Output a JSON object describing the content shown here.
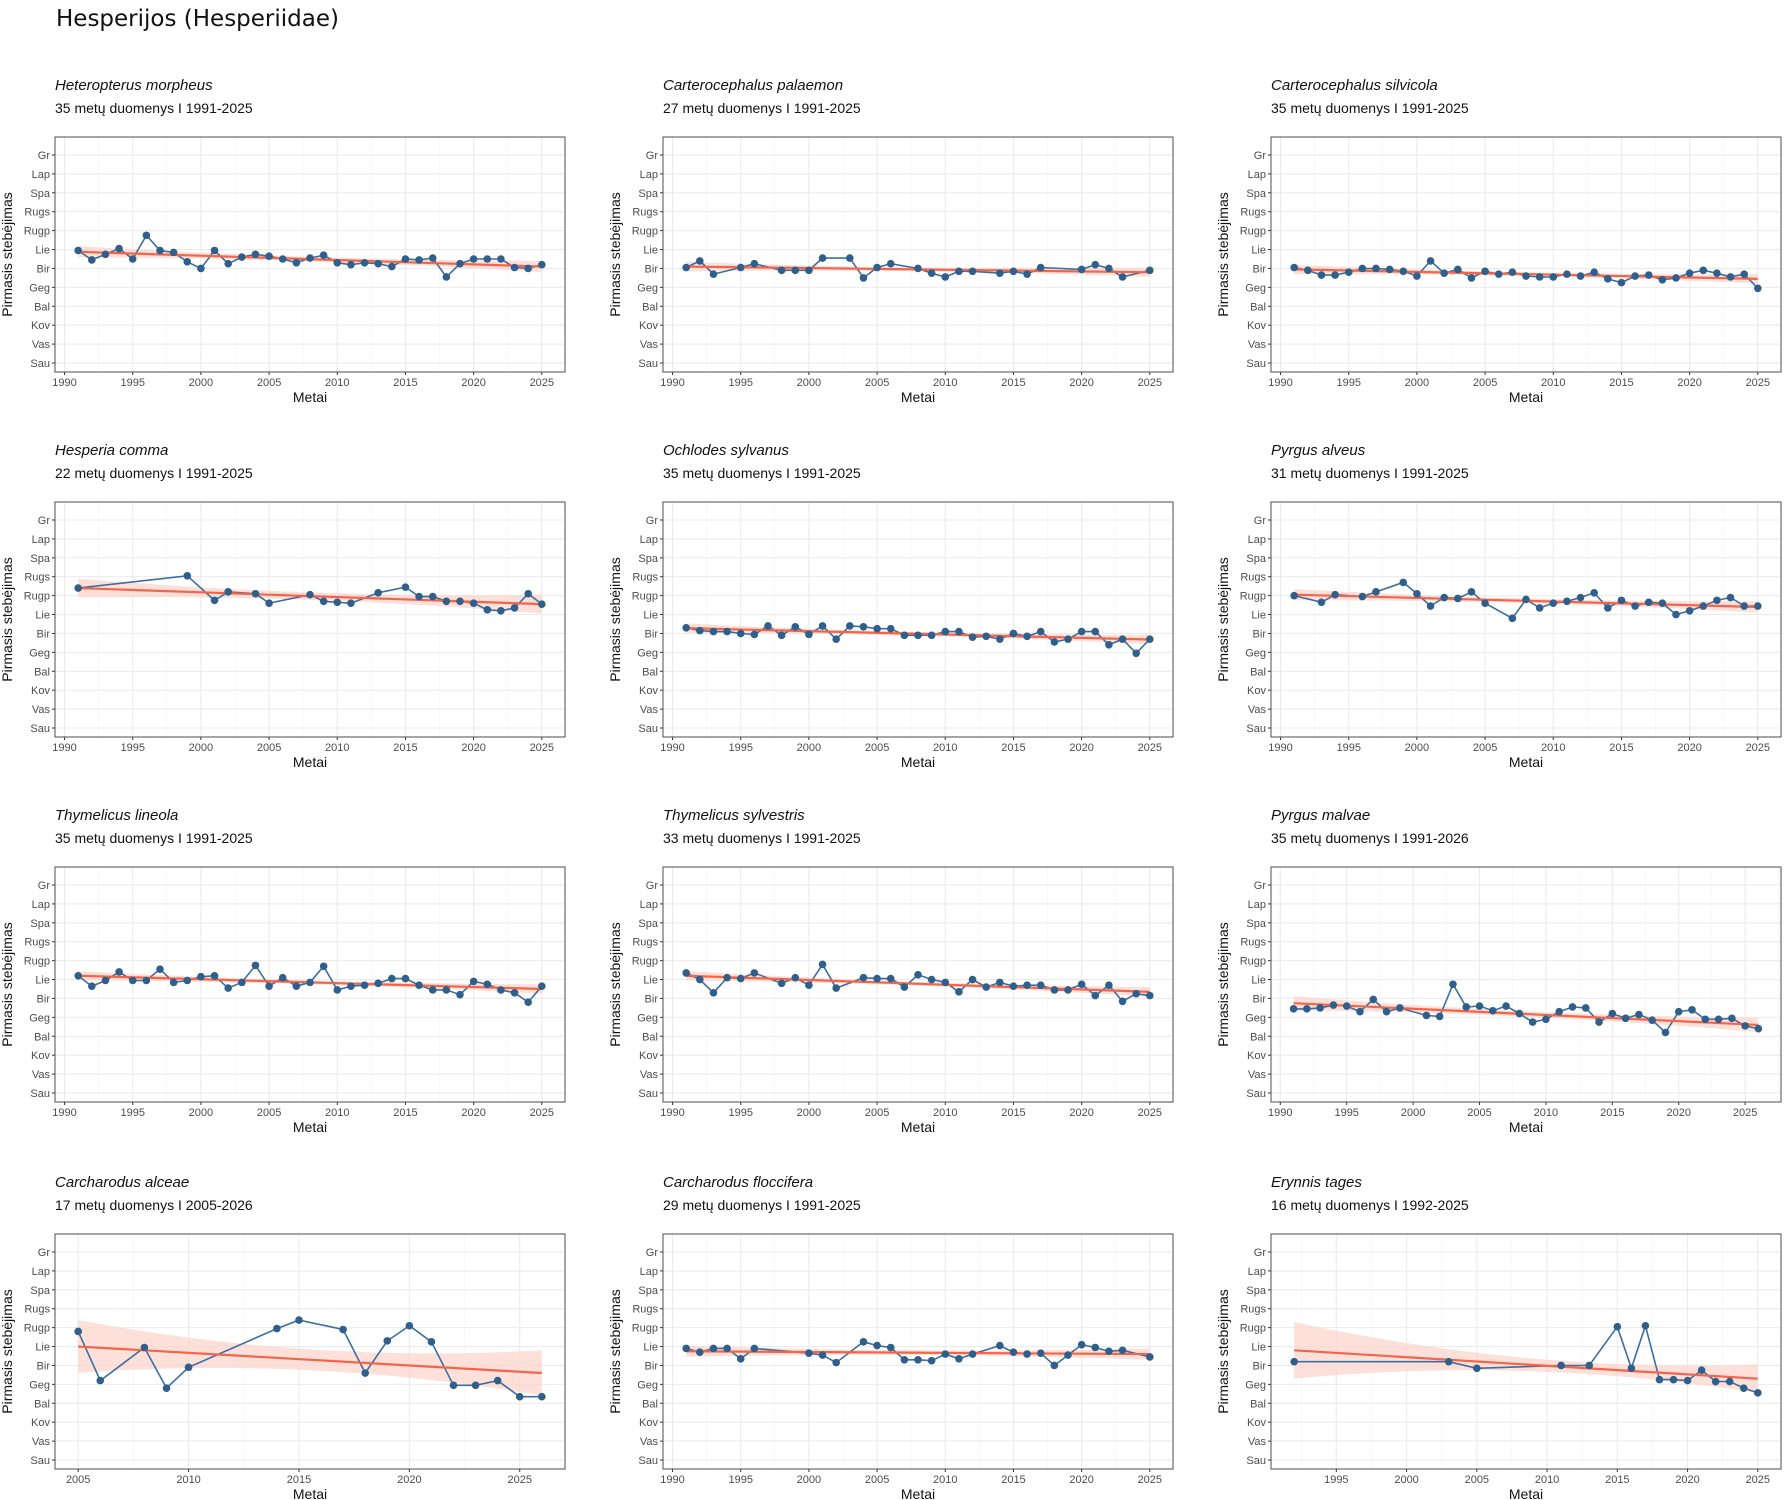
{
  "page": {
    "title": "Hesperijos (Hesperiidae)"
  },
  "colors": {
    "points": "#2f5f8a",
    "line": "#3b6fa0",
    "trend": "#f2654a",
    "ribbon": "#fbd5cc",
    "grid": "#ebebeb",
    "frame": "#4d4d4d"
  },
  "axis": {
    "xlabel": "Metai",
    "ylabel": "Pirmasis stebėjimas",
    "month_labels": [
      "Sau",
      "Vas",
      "Kov",
      "Bal",
      "Geg",
      "Bir",
      "Lie",
      "Rugp",
      "Rugs",
      "Spa",
      "Lap",
      "Gr"
    ]
  },
  "chart_data": [
    {
      "type": "line",
      "title": "Heteropterus morpheus",
      "subtitle": {
        "years_label": "35 metų duomenys",
        "sep": "I",
        "range": "1991-2025"
      },
      "xlabel": "Metai",
      "ylabel": "Pirmasis stebėjimas",
      "xlim": [
        1989.3,
        2026.7
      ],
      "xticks": [
        1990,
        1995,
        2000,
        2005,
        2010,
        2015,
        2020,
        2025
      ],
      "ylim": [
        0.3,
        12.7
      ],
      "x": [
        1991,
        1992,
        1993,
        1994,
        1995,
        1996,
        1997,
        1998,
        1999,
        2000,
        2001,
        2002,
        2003,
        2004,
        2005,
        2006,
        2007,
        2008,
        2009,
        2010,
        2011,
        2012,
        2013,
        2014,
        2015,
        2016,
        2017,
        2018,
        2019,
        2020,
        2021,
        2022,
        2023,
        2024,
        2025
      ],
      "y": [
        6.95,
        6.45,
        6.75,
        7.05,
        6.5,
        7.75,
        6.95,
        6.85,
        6.35,
        6.0,
        6.95,
        6.25,
        6.6,
        6.75,
        6.65,
        6.5,
        6.3,
        6.55,
        6.7,
        6.3,
        6.2,
        6.3,
        6.25,
        6.1,
        6.5,
        6.45,
        6.55,
        5.55,
        6.25,
        6.5,
        6.5,
        6.5,
        6.05,
        6.0,
        6.2
      ],
      "trend": {
        "start": 6.88,
        "end": 6.1,
        "ci": 0.12
      }
    },
    {
      "type": "line",
      "title": "Carterocephalus palaemon",
      "subtitle": {
        "years_label": "27 metų duomenys",
        "sep": "I",
        "range": "1991-2025"
      },
      "xlabel": "Metai",
      "ylabel": "Pirmasis stebėjimas",
      "xlim": [
        1989.3,
        2026.7
      ],
      "xticks": [
        1990,
        1995,
        2000,
        2005,
        2010,
        2015,
        2020,
        2025
      ],
      "ylim": [
        0.3,
        12.7
      ],
      "x": [
        1991,
        1992,
        1993,
        1995,
        1996,
        1998,
        1999,
        2000,
        2001,
        2003,
        2004,
        2005,
        2006,
        2008,
        2009,
        2010,
        2011,
        2012,
        2014,
        2015,
        2016,
        2017,
        2020,
        2021,
        2022,
        2023,
        2025
      ],
      "y": [
        6.05,
        6.4,
        5.7,
        6.05,
        6.25,
        5.9,
        5.9,
        5.9,
        6.55,
        6.55,
        5.5,
        6.05,
        6.25,
        6.0,
        5.75,
        5.55,
        5.85,
        5.85,
        5.75,
        5.85,
        5.7,
        6.05,
        5.95,
        6.2,
        6.0,
        5.55,
        5.9
      ],
      "trend": {
        "start": 6.1,
        "end": 5.8,
        "ci": 0.1
      }
    },
    {
      "type": "line",
      "title": "Carterocephalus silvicola",
      "subtitle": {
        "years_label": "35 metų duomenys",
        "sep": "I",
        "range": "1991-2025"
      },
      "xlabel": "Metai",
      "ylabel": "Pirmasis stebėjimas",
      "xlim": [
        1989.3,
        2026.7
      ],
      "xticks": [
        1990,
        1995,
        2000,
        2005,
        2010,
        2015,
        2020,
        2025
      ],
      "ylim": [
        0.3,
        12.7
      ],
      "x": [
        1991,
        1992,
        1993,
        1994,
        1995,
        1996,
        1997,
        1998,
        1999,
        2000,
        2001,
        2002,
        2003,
        2004,
        2005,
        2006,
        2007,
        2008,
        2009,
        2010,
        2011,
        2012,
        2013,
        2014,
        2015,
        2016,
        2017,
        2018,
        2019,
        2020,
        2021,
        2022,
        2023,
        2024,
        2025
      ],
      "y": [
        6.05,
        5.9,
        5.65,
        5.65,
        5.8,
        6.0,
        6.0,
        5.95,
        5.85,
        5.6,
        6.4,
        5.75,
        5.95,
        5.5,
        5.85,
        5.7,
        5.8,
        5.6,
        5.55,
        5.55,
        5.7,
        5.6,
        5.8,
        5.45,
        5.25,
        5.6,
        5.65,
        5.4,
        5.5,
        5.75,
        5.9,
        5.75,
        5.55,
        5.7,
        4.95
      ],
      "trend": {
        "start": 5.95,
        "end": 5.45,
        "ci": 0.1
      }
    },
    {
      "type": "line",
      "title": "Hesperia comma",
      "subtitle": {
        "years_label": "22 metų duomenys",
        "sep": "I",
        "range": "1991-2025"
      },
      "xlabel": "Metai",
      "ylabel": "Pirmasis stebėjimas",
      "xlim": [
        1989.3,
        2026.7
      ],
      "xticks": [
        1990,
        1995,
        2000,
        2005,
        2010,
        2015,
        2020,
        2025
      ],
      "ylim": [
        0.3,
        12.7
      ],
      "x": [
        1991,
        1999,
        2001,
        2002,
        2004,
        2005,
        2008,
        2009,
        2010,
        2011,
        2013,
        2015,
        2016,
        2017,
        2018,
        2019,
        2020,
        2021,
        2022,
        2023,
        2024,
        2025
      ],
      "y": [
        8.4,
        9.05,
        7.75,
        8.2,
        8.1,
        7.6,
        8.05,
        7.7,
        7.65,
        7.6,
        8.15,
        8.45,
        7.95,
        7.95,
        7.7,
        7.7,
        7.6,
        7.25,
        7.2,
        7.35,
        8.1,
        7.55
      ],
      "trend": {
        "start": 8.4,
        "end": 7.55,
        "ci": 0.2
      }
    },
    {
      "type": "line",
      "title": "Ochlodes sylvanus",
      "subtitle": {
        "years_label": "35 metų duomenys",
        "sep": "I",
        "range": "1991-2025"
      },
      "xlabel": "Metai",
      "ylabel": "Pirmasis stebėjimas",
      "xlim": [
        1989.3,
        2026.7
      ],
      "xticks": [
        1990,
        1995,
        2000,
        2005,
        2010,
        2015,
        2020,
        2025
      ],
      "ylim": [
        0.3,
        12.7
      ],
      "x": [
        1991,
        1992,
        1993,
        1994,
        1995,
        1996,
        1997,
        1998,
        1999,
        2000,
        2001,
        2002,
        2003,
        2004,
        2005,
        2006,
        2007,
        2008,
        2009,
        2010,
        2011,
        2012,
        2013,
        2014,
        2015,
        2016,
        2017,
        2018,
        2019,
        2020,
        2021,
        2022,
        2023,
        2024,
        2025
      ],
      "y": [
        6.3,
        6.15,
        6.1,
        6.1,
        6.0,
        5.95,
        6.4,
        5.9,
        6.35,
        5.95,
        6.4,
        5.7,
        6.4,
        6.35,
        6.25,
        6.25,
        5.9,
        5.9,
        5.9,
        6.1,
        6.1,
        5.8,
        5.85,
        5.7,
        6.0,
        5.85,
        6.1,
        5.55,
        5.7,
        6.1,
        6.1,
        5.4,
        5.7,
        4.95,
        5.7
      ],
      "trend": {
        "start": 6.28,
        "end": 5.68,
        "ci": 0.1
      }
    },
    {
      "type": "line",
      "title": "Pyrgus alveus",
      "subtitle": {
        "years_label": "31 metų duomenys",
        "sep": "I",
        "range": "1991-2025"
      },
      "xlabel": "Metai",
      "ylabel": "Pirmasis stebėjimas",
      "xlim": [
        1989.3,
        2026.7
      ],
      "xticks": [
        1990,
        1995,
        2000,
        2005,
        2010,
        2015,
        2020,
        2025
      ],
      "ylim": [
        0.3,
        12.7
      ],
      "x": [
        1991,
        1993,
        1994,
        1996,
        1997,
        1999,
        2000,
        2001,
        2002,
        2003,
        2004,
        2005,
        2007,
        2008,
        2009,
        2010,
        2011,
        2012,
        2013,
        2014,
        2015,
        2016,
        2017,
        2018,
        2019,
        2020,
        2021,
        2022,
        2023,
        2024,
        2025
      ],
      "y": [
        8.0,
        7.65,
        8.05,
        7.95,
        8.2,
        8.7,
        8.1,
        7.45,
        7.9,
        7.85,
        8.2,
        7.6,
        6.8,
        7.8,
        7.35,
        7.6,
        7.7,
        7.9,
        8.15,
        7.35,
        7.75,
        7.45,
        7.65,
        7.6,
        7.0,
        7.2,
        7.45,
        7.75,
        7.9,
        7.45,
        7.45
      ],
      "trend": {
        "start": 8.05,
        "end": 7.4,
        "ci": 0.12
      }
    },
    {
      "type": "line",
      "title": "Thymelicus lineola",
      "subtitle": {
        "years_label": "35 metų duomenys",
        "sep": "I",
        "range": "1991-2025"
      },
      "xlabel": "Metai",
      "ylabel": "Pirmasis stebėjimas",
      "xlim": [
        1989.3,
        2026.7
      ],
      "xticks": [
        1990,
        1995,
        2000,
        2005,
        2010,
        2015,
        2020,
        2025
      ],
      "ylim": [
        0.3,
        12.7
      ],
      "x": [
        1991,
        1992,
        1993,
        1994,
        1995,
        1996,
        1997,
        1998,
        1999,
        2000,
        2001,
        2002,
        2003,
        2004,
        2005,
        2006,
        2007,
        2008,
        2009,
        2010,
        2011,
        2012,
        2013,
        2014,
        2015,
        2016,
        2017,
        2018,
        2019,
        2020,
        2021,
        2022,
        2023,
        2024,
        2025
      ],
      "y": [
        7.2,
        6.65,
        6.95,
        7.4,
        6.95,
        6.95,
        7.55,
        6.85,
        6.95,
        7.15,
        7.2,
        6.55,
        6.85,
        7.75,
        6.65,
        7.1,
        6.65,
        6.85,
        7.7,
        6.45,
        6.65,
        6.7,
        6.8,
        7.05,
        7.05,
        6.7,
        6.45,
        6.45,
        6.2,
        6.9,
        6.75,
        6.45,
        6.3,
        5.8,
        6.65
      ],
      "trend": {
        "start": 7.2,
        "end": 6.5,
        "ci": 0.1
      }
    },
    {
      "type": "line",
      "title": "Thymelicus sylvestris",
      "subtitle": {
        "years_label": "33 metų duomenys",
        "sep": "I",
        "range": "1991-2025"
      },
      "xlabel": "Metai",
      "ylabel": "Pirmasis stebėjimas",
      "xlim": [
        1989.3,
        2026.7
      ],
      "xticks": [
        1990,
        1995,
        2000,
        2005,
        2010,
        2015,
        2020,
        2025
      ],
      "ylim": [
        0.3,
        12.7
      ],
      "x": [
        1991,
        1992,
        1993,
        1994,
        1995,
        1996,
        1998,
        1999,
        2000,
        2001,
        2002,
        2004,
        2005,
        2006,
        2007,
        2008,
        2009,
        2010,
        2011,
        2012,
        2013,
        2014,
        2015,
        2016,
        2017,
        2018,
        2019,
        2020,
        2021,
        2022,
        2023,
        2024,
        2025
      ],
      "y": [
        7.35,
        7.0,
        6.3,
        7.1,
        7.05,
        7.35,
        6.8,
        7.1,
        6.7,
        7.8,
        6.55,
        7.1,
        7.05,
        7.05,
        6.6,
        7.25,
        7.0,
        6.85,
        6.35,
        7.0,
        6.6,
        6.85,
        6.65,
        6.7,
        6.7,
        6.45,
        6.45,
        6.75,
        6.15,
        6.7,
        5.85,
        6.25,
        6.15
      ],
      "trend": {
        "start": 7.2,
        "end": 6.35,
        "ci": 0.1
      }
    },
    {
      "type": "line",
      "title": "Pyrgus malvae",
      "subtitle": {
        "years_label": "35 metų duomenys",
        "sep": "I",
        "range": "1991-2026"
      },
      "xlabel": "Metai",
      "ylabel": "Pirmasis stebėjimas",
      "xlim": [
        1989.3,
        2027.7
      ],
      "xticks": [
        1990,
        1995,
        2000,
        2005,
        2010,
        2015,
        2020,
        2025
      ],
      "ylim": [
        0.3,
        12.7
      ],
      "x": [
        1991,
        1992,
        1993,
        1994,
        1995,
        1996,
        1997,
        1998,
        1999,
        2001,
        2002,
        2003,
        2004,
        2005,
        2006,
        2007,
        2008,
        2009,
        2010,
        2011,
        2012,
        2013,
        2014,
        2015,
        2016,
        2017,
        2018,
        2019,
        2020,
        2021,
        2022,
        2023,
        2024,
        2025,
        2026
      ],
      "y": [
        5.45,
        5.45,
        5.5,
        5.65,
        5.6,
        5.3,
        5.95,
        5.3,
        5.5,
        5.1,
        5.05,
        6.75,
        5.55,
        5.6,
        5.35,
        5.6,
        5.2,
        4.75,
        4.9,
        5.3,
        5.55,
        5.5,
        4.75,
        5.2,
        4.95,
        5.15,
        4.85,
        4.2,
        5.3,
        5.4,
        4.9,
        4.9,
        4.95,
        4.55,
        4.4
      ],
      "trend": {
        "start": 5.75,
        "end": 4.6,
        "ci": 0.15
      }
    },
    {
      "type": "line",
      "title": "Carcharodus alceae",
      "subtitle": {
        "years_label": "17 metų duomenys",
        "sep": "I",
        "range": "2005-2026"
      },
      "xlabel": "Metai",
      "ylabel": "Pirmasis stebėjimas",
      "xlim": [
        2003.95,
        2027.05
      ],
      "xticks": [
        2005,
        2010,
        2015,
        2020,
        2025
      ],
      "ylim": [
        0.3,
        12.7
      ],
      "x": [
        2005,
        2006,
        2008,
        2009,
        2010,
        2014,
        2015,
        2017,
        2018,
        2019,
        2020,
        2021,
        2022,
        2023,
        2024,
        2025,
        2026
      ],
      "y": [
        7.8,
        5.2,
        6.95,
        4.8,
        5.9,
        7.95,
        8.4,
        7.9,
        5.6,
        7.3,
        8.1,
        7.25,
        4.95,
        4.95,
        5.2,
        4.35,
        4.35
      ],
      "trend": {
        "start": 7.0,
        "end": 5.6,
        "ci_start": 1.4,
        "ci_mid": 0.55,
        "ci_end": 1.2
      }
    },
    {
      "type": "line",
      "title": "Carcharodus floccifera",
      "subtitle": {
        "years_label": "29 metų duomenys",
        "sep": "I",
        "range": "1991-2025"
      },
      "xlabel": "Metai",
      "ylabel": "Pirmasis stebėjimas",
      "xlim": [
        1989.3,
        2026.7
      ],
      "xticks": [
        1990,
        1995,
        2000,
        2005,
        2010,
        2015,
        2020,
        2025
      ],
      "ylim": [
        0.3,
        12.7
      ],
      "x": [
        1991,
        1992,
        1993,
        1994,
        1995,
        1996,
        2000,
        2001,
        2002,
        2004,
        2005,
        2006,
        2007,
        2008,
        2009,
        2010,
        2011,
        2012,
        2014,
        2015,
        2016,
        2017,
        2018,
        2019,
        2020,
        2021,
        2022,
        2023,
        2025
      ],
      "y": [
        6.9,
        6.7,
        6.9,
        6.9,
        6.35,
        6.9,
        6.65,
        6.55,
        6.15,
        7.25,
        7.05,
        6.95,
        6.3,
        6.3,
        6.25,
        6.6,
        6.35,
        6.6,
        7.05,
        6.7,
        6.6,
        6.65,
        6.0,
        6.55,
        7.1,
        6.95,
        6.75,
        6.8,
        6.45
      ],
      "trend": {
        "start": 6.75,
        "end": 6.6,
        "ci": 0.12
      }
    },
    {
      "type": "line",
      "title": "Erynnis tages",
      "subtitle": {
        "years_label": "16 metų duomenys",
        "sep": "I",
        "range": "1992-2025"
      },
      "xlabel": "Metai",
      "ylabel": "Pirmasis stebėjimas",
      "xlim": [
        1990.35,
        2026.65
      ],
      "xticks": [
        1995,
        2000,
        2005,
        2010,
        2015,
        2020,
        2025
      ],
      "ylim": [
        0.3,
        12.7
      ],
      "x": [
        1992,
        2003,
        2005,
        2011,
        2013,
        2015,
        2016,
        2017,
        2018,
        2019,
        2020,
        2021,
        2022,
        2023,
        2024,
        2025
      ],
      "y": [
        6.2,
        6.2,
        5.85,
        6.0,
        6.0,
        8.05,
        5.85,
        8.1,
        5.25,
        5.25,
        5.2,
        5.75,
        5.15,
        5.15,
        4.8,
        4.55
      ],
      "trend": {
        "start": 6.8,
        "end": 5.3,
        "ci_start": 1.5,
        "ci_mid": 0.35,
        "ci_end": 0.75
      }
    }
  ]
}
